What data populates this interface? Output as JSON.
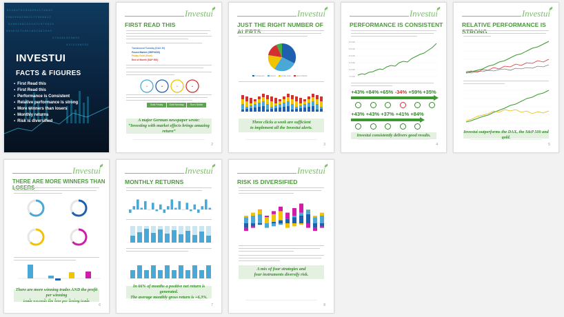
{
  "brand": {
    "name": "Investui",
    "color": "#7dbf6a"
  },
  "cover": {
    "title": "INVESTUI",
    "subtitle": "FACTS & FIGURES",
    "items": [
      "First Read this",
      "First Read this",
      "Performance is Consistent",
      "Relative performance is strong",
      "More winners than losers",
      "Monthly returns",
      "Risk is diversified"
    ]
  },
  "pages": [
    {
      "title": "FIRST READ THIS",
      "callout": [
        "A major German newspaper wrote:",
        "“Investing with market effects brings amazing return”"
      ],
      "page_number": "2",
      "list": [
        "Turnaround Tuesday (DAX 30)",
        "Pound Market (GBP/USD)",
        "Friday Gold (Gold)",
        "End of Month (S&P 500)"
      ],
      "list_colors": [
        "#3a7dd8",
        "#e8a400",
        "#e8a400",
        "#d33030"
      ],
      "buttons": [
        "Gold Friday",
        "Gold Monday",
        "Euro Dollar"
      ]
    },
    {
      "title": "JUST THE RIGHT NUMBER OF ALERTS",
      "callout": [
        "Three clicks a week are sufficient",
        "to implement all the Investui alerts."
      ],
      "page_number": "3"
    },
    {
      "title": "PERFORMANCE IS CONSISTENT",
      "callout": [
        "Investui consistently delivers good results."
      ],
      "page_number": "4",
      "row1": [
        "+43%",
        "+84%",
        "+65%",
        "-34%",
        "+59%",
        "+35%"
      ],
      "row2": [
        "+43%",
        "+43%",
        "+37%",
        "+41%",
        "+84%"
      ]
    },
    {
      "title": "RELATIVE PERFORMANCE IS STRONG",
      "callout": [
        "Investui outperforms the DAX, the S&P 500 and gold."
      ],
      "page_number": "5"
    },
    {
      "title": "THERE ARE MORE WINNERS THAN LOSERS",
      "callout": [
        "There are more winning trades AND the profit per winning",
        "trade exceeds the loss per losing trade"
      ],
      "page_number": "6"
    },
    {
      "title": "MONTHLY RETURNS",
      "callout": [
        "In 66% of months a positive net return is generated.",
        "The average monthly gross return is +6,3%."
      ],
      "page_number": "7"
    },
    {
      "title": "RISK IS DIVERSIFIED",
      "callout": [
        "A mix of four strategies and",
        "four instruments diversify risk."
      ],
      "page_number": "8"
    }
  ],
  "colors": {
    "accent_green": "#4a9a3a",
    "callout_bg": "#e5f1e0",
    "positive": "#2f8a24",
    "negative": "#d33030",
    "chart_blue": "#4aa8d6",
    "gold": "#f0c400"
  }
}
